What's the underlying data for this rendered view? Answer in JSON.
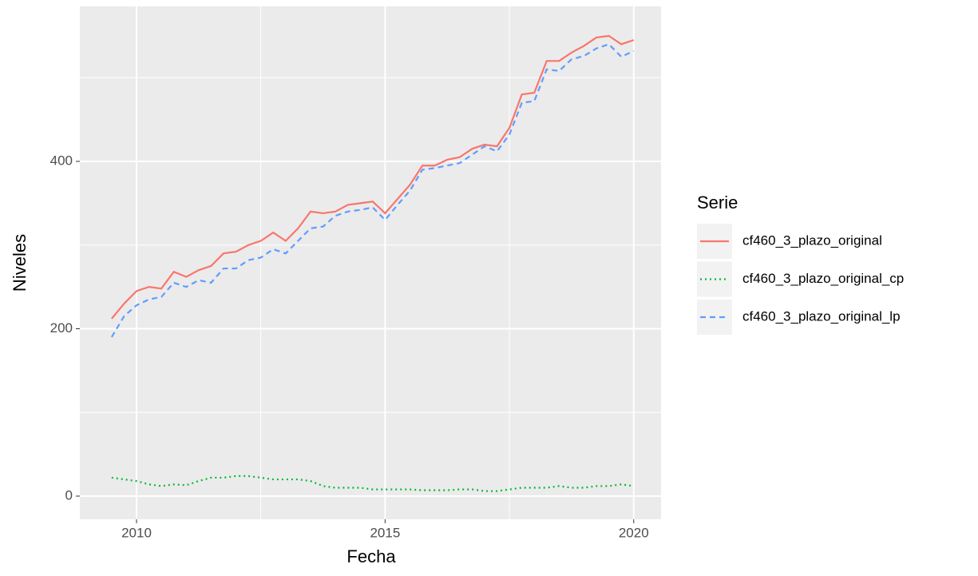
{
  "chart_data": {
    "type": "line",
    "x_label": "Fecha",
    "y_label": "Niveles",
    "legend_title": "Serie",
    "legend_position": "right",
    "x": [
      2009.5,
      2009.75,
      2010.0,
      2010.25,
      2010.5,
      2010.75,
      2011.0,
      2011.25,
      2011.5,
      2011.75,
      2012.0,
      2012.25,
      2012.5,
      2012.75,
      2013.0,
      2013.25,
      2013.5,
      2013.75,
      2014.0,
      2014.25,
      2014.5,
      2014.75,
      2015.0,
      2015.25,
      2015.5,
      2015.75,
      2016.0,
      2016.25,
      2016.5,
      2016.75,
      2017.0,
      2017.25,
      2017.5,
      2017.75,
      2018.0,
      2018.25,
      2018.5,
      2018.75,
      2019.0,
      2019.25,
      2019.5,
      2019.75,
      2020.0
    ],
    "series": [
      {
        "name": "cf460_3_plazo_original",
        "color": "#F8766D",
        "dash": "solid",
        "values": [
          212,
          230,
          245,
          250,
          248,
          268,
          262,
          270,
          275,
          290,
          292,
          300,
          305,
          315,
          305,
          320,
          340,
          338,
          340,
          348,
          350,
          352,
          338,
          355,
          372,
          395,
          395,
          402,
          405,
          415,
          420,
          418,
          440,
          480,
          482,
          520,
          520,
          530,
          538,
          548,
          550,
          540,
          545
        ]
      },
      {
        "name": "cf460_3_plazo_original_cp",
        "color": "#00BA38",
        "dash": "dotted",
        "values": [
          22,
          20,
          18,
          14,
          12,
          14,
          13,
          18,
          22,
          22,
          24,
          24,
          22,
          20,
          20,
          20,
          18,
          12,
          10,
          10,
          10,
          8,
          8,
          8,
          8,
          7,
          7,
          7,
          8,
          8,
          6,
          6,
          8,
          10,
          10,
          10,
          12,
          10,
          10,
          12,
          12,
          14,
          12
        ]
      },
      {
        "name": "cf460_3_plazo_original_lp",
        "color": "#619CFF",
        "dash": "dashed",
        "values": [
          190,
          215,
          228,
          235,
          238,
          255,
          250,
          258,
          255,
          272,
          272,
          282,
          285,
          295,
          290,
          305,
          320,
          322,
          335,
          340,
          342,
          345,
          330,
          348,
          365,
          390,
          392,
          395,
          398,
          408,
          418,
          412,
          432,
          470,
          472,
          510,
          508,
          522,
          526,
          535,
          540,
          525,
          532
        ]
      }
    ],
    "xlim": [
      2008.86,
      2020.55
    ],
    "xticks": [
      2010,
      2015,
      2020
    ],
    "x_minor_grid": [
      2012.5,
      2017.5
    ],
    "ylim": [
      -27.7,
      585.2
    ],
    "yticks": [
      0,
      200,
      400
    ],
    "y_minor_grid": [
      100,
      300,
      500
    ],
    "grid": true
  }
}
